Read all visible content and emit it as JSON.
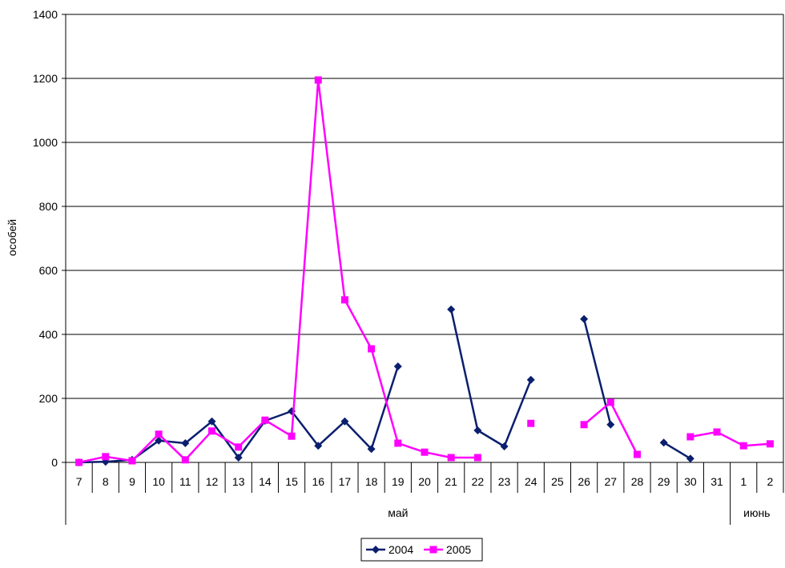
{
  "chart_data": {
    "type": "line",
    "title": "",
    "ylabel": "особей",
    "ylim": [
      0,
      1400
    ],
    "yticks": [
      0,
      200,
      400,
      600,
      800,
      1000,
      1200,
      1400
    ],
    "grid": "horizontal",
    "legend_position": "bottom",
    "categories": [
      "7",
      "8",
      "9",
      "10",
      "11",
      "12",
      "13",
      "14",
      "15",
      "16",
      "17",
      "18",
      "19",
      "20",
      "21",
      "22",
      "23",
      "24",
      "25",
      "26",
      "27",
      "28",
      "29",
      "30",
      "31",
      "1",
      "2"
    ],
    "category_groups": [
      {
        "label": "май",
        "count": 25
      },
      {
        "label": "июнь",
        "count": 2
      }
    ],
    "series": [
      {
        "name": "2004",
        "color": "#0a1f6e",
        "marker": "diamond",
        "values": [
          0,
          2,
          8,
          68,
          60,
          128,
          15,
          130,
          160,
          52,
          128,
          42,
          300,
          null,
          478,
          100,
          50,
          258,
          null,
          448,
          118,
          null,
          62,
          12,
          null,
          null,
          null
        ]
      },
      {
        "name": "2005",
        "color": "#ff00ff",
        "marker": "square",
        "values": [
          0,
          18,
          5,
          88,
          8,
          98,
          48,
          132,
          82,
          1195,
          508,
          355,
          60,
          32,
          15,
          15,
          null,
          122,
          null,
          118,
          188,
          25,
          null,
          80,
          95,
          52,
          58
        ]
      }
    ]
  }
}
